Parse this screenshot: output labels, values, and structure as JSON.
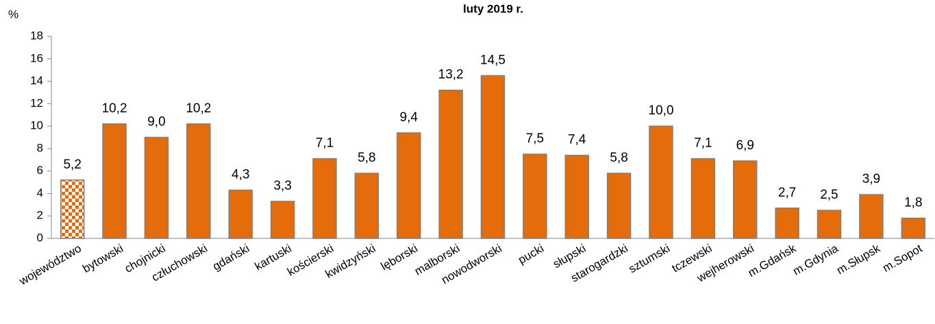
{
  "chart_data": {
    "type": "bar",
    "title": "luty 2019 r.",
    "y_label": "%",
    "categories": [
      "województwo",
      "bytowski",
      "chojnicki",
      "człuchowski",
      "gdański",
      "kartuski",
      "kościerski",
      "kwidzyński",
      "lęborski",
      "malborski",
      "nowodworski",
      "pucki",
      "słupski",
      "starogardzki",
      "sztumski",
      "tczewski",
      "wejherowski",
      "m.Gdańsk",
      "m.Gdynia",
      "m.Słupsk",
      "m.Sopot"
    ],
    "values": [
      5.2,
      10.2,
      9.0,
      10.2,
      4.3,
      3.3,
      7.1,
      5.8,
      9.4,
      13.2,
      14.5,
      7.5,
      7.4,
      5.8,
      10.0,
      7.1,
      6.9,
      2.7,
      2.5,
      3.9,
      1.8
    ],
    "value_labels": [
      "5,2",
      "10,2",
      "9,0",
      "10,2",
      "4,3",
      "3,3",
      "7,1",
      "5,8",
      "9,4",
      "13,2",
      "14,5",
      "7,5",
      "7,4",
      "5,8",
      "10,0",
      "7,1",
      "6,9",
      "2,7",
      "2,5",
      "3,9",
      "1,8"
    ],
    "color": "#e46c0a",
    "patterned_index": 0,
    "ylim": [
      0,
      18
    ],
    "yticks": [
      0,
      2,
      4,
      6,
      8,
      10,
      12,
      14,
      16,
      18
    ],
    "grid": false
  }
}
